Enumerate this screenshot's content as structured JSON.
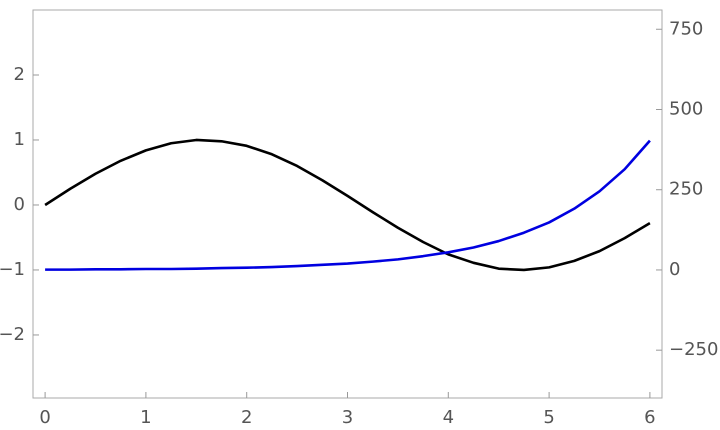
{
  "chart_data": {
    "type": "line",
    "x": [
      0,
      0.25,
      0.5,
      0.75,
      1,
      1.25,
      1.5,
      1.75,
      2,
      2.25,
      2.5,
      2.75,
      3,
      3.25,
      3.5,
      3.75,
      4,
      4.25,
      4.5,
      4.75,
      5,
      5.25,
      5.5,
      5.75,
      6
    ],
    "series": [
      {
        "color": "#000000",
        "values": [
          0,
          0.25,
          0.48,
          0.68,
          0.84,
          0.95,
          1.0,
          0.98,
          0.91,
          0.78,
          0.6,
          0.38,
          0.14,
          -0.11,
          -0.35,
          -0.57,
          -0.76,
          -0.89,
          -0.98,
          -1.0,
          -0.96,
          -0.86,
          -0.71,
          -0.51,
          -0.28
        ]
      },
      {
        "color": "#0000e0",
        "axis": "y2",
        "values": [
          1,
          1,
          2,
          2,
          3,
          3,
          4,
          6,
          7,
          9,
          12,
          16,
          20,
          26,
          33,
          43,
          55,
          70,
          90,
          116,
          148,
          191,
          245,
          314,
          403
        ]
      }
    ],
    "xlim": [
      -0.12,
      6.12
    ],
    "xticks": [
      0,
      1,
      2,
      3,
      4,
      5,
      6
    ],
    "ylim": [
      -2.97,
      3.0
    ],
    "yticks": [
      {
        "value": -2,
        "label": "−2"
      },
      {
        "value": -1,
        "label": "−1"
      },
      0,
      1,
      2
    ],
    "y2lim": [
      -399,
      810
    ],
    "y2ticks": [
      {
        "value": -250,
        "label": "−250"
      },
      0,
      250,
      500,
      750
    ]
  }
}
